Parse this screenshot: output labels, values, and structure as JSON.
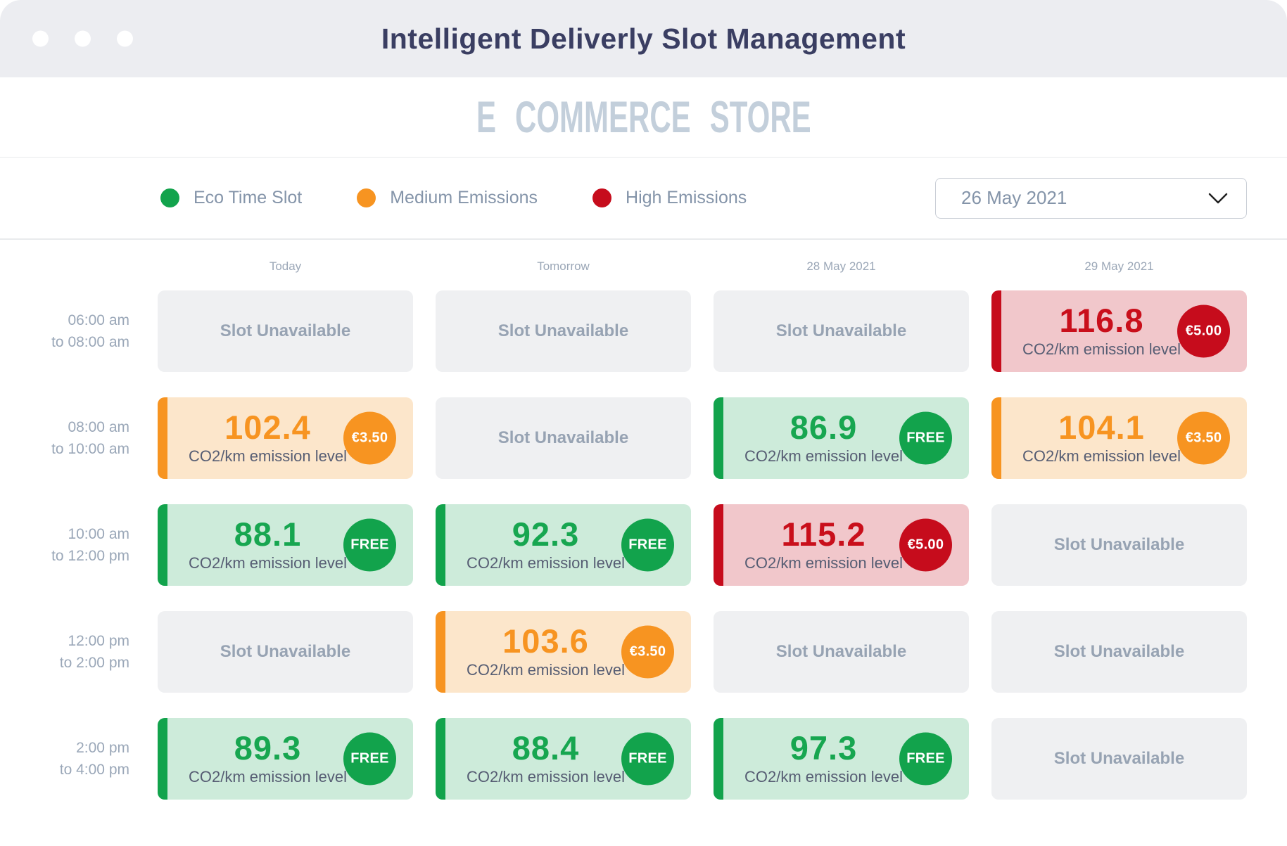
{
  "window": {
    "title": "Intelligent Deliverly Slot Management"
  },
  "store": {
    "name": "E COMMERCE STORE"
  },
  "legend": {
    "items": [
      {
        "id": "eco",
        "label": "Eco Time Slot",
        "color": "#12A34C"
      },
      {
        "id": "medium",
        "label": "Medium Emissions",
        "color": "#F79421"
      },
      {
        "id": "high",
        "label": "High Emissions",
        "color": "#C60C1C"
      }
    ]
  },
  "date_picker": {
    "value": "26 May 2021"
  },
  "grid": {
    "columns": [
      "Today",
      "Tomorrow",
      "28 May 2021",
      "29 May 2021"
    ],
    "unavailable_label": "Slot Unavailable",
    "emission_caption": "CO2/km emission level",
    "rows": [
      {
        "time_line1": "06:00 am",
        "time_line2": "to 08:00 am",
        "cells": [
          {
            "status": "unavailable"
          },
          {
            "status": "unavailable"
          },
          {
            "status": "unavailable"
          },
          {
            "status": "high",
            "value": "116.8",
            "badge": "€5.00"
          }
        ]
      },
      {
        "time_line1": "08:00 am",
        "time_line2": "to 10:00 am",
        "cells": [
          {
            "status": "medium",
            "value": "102.4",
            "badge": "€3.50"
          },
          {
            "status": "unavailable"
          },
          {
            "status": "eco",
            "value": "86.9",
            "badge": "FREE"
          },
          {
            "status": "medium",
            "value": "104.1",
            "badge": "€3.50"
          }
        ]
      },
      {
        "time_line1": "10:00 am",
        "time_line2": "to 12:00 pm",
        "cells": [
          {
            "status": "eco",
            "value": "88.1",
            "badge": "FREE"
          },
          {
            "status": "eco",
            "value": "92.3",
            "badge": "FREE"
          },
          {
            "status": "high",
            "value": "115.2",
            "badge": "€5.00"
          },
          {
            "status": "unavailable"
          }
        ]
      },
      {
        "time_line1": "12:00 pm",
        "time_line2": "to 2:00 pm",
        "cells": [
          {
            "status": "unavailable"
          },
          {
            "status": "medium",
            "value": "103.6",
            "badge": "€3.50"
          },
          {
            "status": "unavailable"
          },
          {
            "status": "unavailable"
          }
        ]
      },
      {
        "time_line1": "2:00 pm",
        "time_line2": "to 4:00 pm",
        "cells": [
          {
            "status": "eco",
            "value": "89.3",
            "badge": "FREE"
          },
          {
            "status": "eco",
            "value": "88.4",
            "badge": "FREE"
          },
          {
            "status": "eco",
            "value": "97.3",
            "badge": "FREE"
          },
          {
            "status": "unavailable"
          }
        ]
      }
    ]
  },
  "colors": {
    "eco": "#12A34C",
    "eco_bg": "#CDEBDA",
    "medium": "#F79421",
    "medium_bg": "#FCE6CB",
    "high": "#C60C1C",
    "high_bg": "#F1C7CB",
    "unavailable_bg": "#EFF0F2",
    "titlebar_bg": "#ECEDF1",
    "title_text": "#3A3E62",
    "muted_text": "#8494A9"
  }
}
